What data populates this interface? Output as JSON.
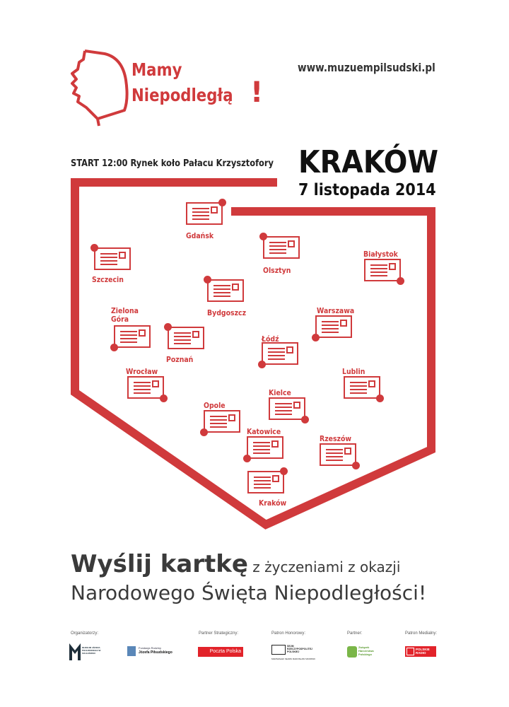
{
  "header": {
    "brand_line1": "Mamy",
    "brand_line2": "Niepodległą",
    "brand_exclaim": "!",
    "website": "www.muzuempilsudski.pl"
  },
  "event": {
    "start": "START 12:00  Rynek koło Pałacu Krzysztofory",
    "city": "KRAKÓW",
    "date": "7 listopada 2014"
  },
  "colors": {
    "accent": "#d03a3c",
    "text": "#3a3a3a"
  },
  "map": {
    "cities": [
      {
        "name": "Gdańsk"
      },
      {
        "name": "Szczecin"
      },
      {
        "name": "Olsztyn"
      },
      {
        "name": "Białystok"
      },
      {
        "name": "Bydgoszcz"
      },
      {
        "name": "Zielona\nGóra"
      },
      {
        "name": "Poznań"
      },
      {
        "name": "Warszawa"
      },
      {
        "name": "Łódź"
      },
      {
        "name": "Wrocław"
      },
      {
        "name": "Lublin"
      },
      {
        "name": "Kielce"
      },
      {
        "name": "Opole"
      },
      {
        "name": "Katowice"
      },
      {
        "name": "Rzeszów"
      },
      {
        "name": "Kraków"
      }
    ]
  },
  "cta": {
    "bold": "Wyślij kartkę",
    "rest": " z życzeniami z okazji",
    "line2": "Narodowego Święta Niepodległości!"
  },
  "sponsors": {
    "organizers_label": "Organizatorzy:",
    "strategic_label": "Partner Strategiczny:",
    "honorary_label": "Patron Honorowy:",
    "partner_label": "Partner:",
    "media_label": "Patron Medialny:",
    "museum": "MUZEUM JÓZEFA PIŁSUDSKIEGO W SULEJÓWKU",
    "foundation_top": "Fundacja Rodziny",
    "foundation_bottom": "Józefa Piłsudskiego",
    "poczta": "Poczta Polska",
    "sejm": "SEJM RZECZYPOSPOLITEJ POLSKIEJ",
    "sejm_sub": "MARSZAŁEK SEJMU RADOSŁAW SIKORSKI",
    "zhp": "Związek Harcerstwa Polskiego",
    "radio": "POLSKIE RADIO"
  }
}
